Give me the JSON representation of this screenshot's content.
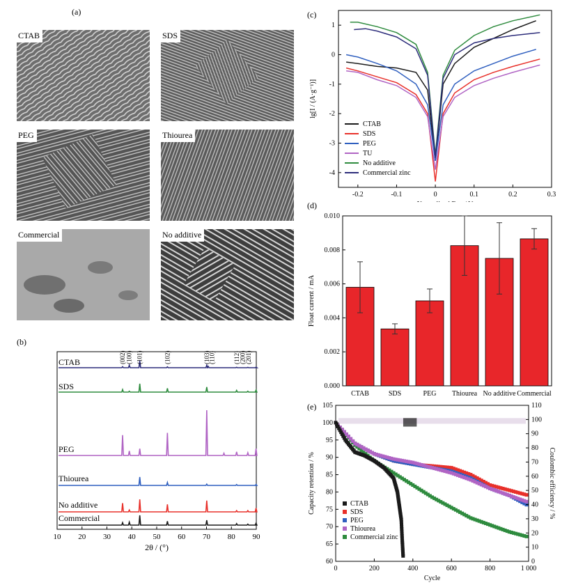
{
  "panel_labels": [
    "(a)",
    "(b)",
    "(c)",
    "(d)",
    "(e)"
  ],
  "sem_images": [
    {
      "label": "CTAB"
    },
    {
      "label": "SDS"
    },
    {
      "label": "PEG"
    },
    {
      "label": "Thiourea"
    },
    {
      "label": "Commercial"
    },
    {
      "label": "No additive"
    }
  ],
  "colors": {
    "ctab": "#1a1a1a",
    "sds": "#e8302a",
    "peg": "#2f5fbf",
    "tu": "#b064c4",
    "no_additive": "#2e8b3e",
    "commercial_zinc": "#2c2c7a",
    "bar": "#e8262a",
    "xrd_ctab": "#2c2c7a"
  },
  "chart_data": [
    {
      "id": "b",
      "type": "line",
      "title": "",
      "xlabel": "2θ / (°)",
      "ylabel": "",
      "xlim": [
        10,
        90
      ],
      "xticks": [
        10,
        20,
        30,
        40,
        50,
        60,
        70,
        80,
        90
      ],
      "series": [
        {
          "name": "CTAB",
          "peaks": [
            [
              36.3,
              0.15
            ],
            [
              39.0,
              0.35
            ],
            [
              43.2,
              1.0
            ],
            [
              54.3,
              0.12
            ],
            [
              70.1,
              0.35
            ],
            [
              70.7,
              0.2
            ],
            [
              82.1,
              0.06
            ],
            [
              86.6,
              0.05
            ],
            [
              89.9,
              0.08
            ]
          ]
        },
        {
          "name": "SDS",
          "peaks": [
            [
              36.3,
              0.3
            ],
            [
              39.0,
              0.1
            ],
            [
              43.2,
              1.0
            ],
            [
              54.3,
              0.45
            ],
            [
              70.1,
              0.6
            ],
            [
              82.1,
              0.2
            ],
            [
              86.6,
              0.1
            ],
            [
              89.9,
              0.25
            ]
          ]
        },
        {
          "name": "PEG",
          "peaks": [
            [
              36.3,
              0.45
            ],
            [
              39.0,
              0.1
            ],
            [
              43.2,
              0.15
            ],
            [
              54.3,
              0.5
            ],
            [
              70.1,
              1.0
            ],
            [
              77.0,
              0.05
            ],
            [
              82.1,
              0.08
            ],
            [
              86.6,
              0.06
            ],
            [
              89.9,
              0.15
            ]
          ]
        },
        {
          "name": "Thiourea",
          "peaks": [
            [
              43.2,
              1.0
            ],
            [
              54.3,
              0.35
            ],
            [
              70.1,
              0.15
            ],
            [
              82.1,
              0.1
            ],
            [
              89.9,
              0.12
            ]
          ]
        },
        {
          "name": "No additive",
          "peaks": [
            [
              36.3,
              0.7
            ],
            [
              39.0,
              0.15
            ],
            [
              43.2,
              1.0
            ],
            [
              54.3,
              0.6
            ],
            [
              70.1,
              0.9
            ],
            [
              82.1,
              0.1
            ],
            [
              86.6,
              0.1
            ],
            [
              89.9,
              0.3
            ]
          ]
        },
        {
          "name": "Commercial",
          "peaks": [
            [
              36.3,
              0.25
            ],
            [
              39.0,
              0.3
            ],
            [
              43.2,
              1.0
            ],
            [
              54.3,
              0.4
            ],
            [
              70.1,
              0.5
            ],
            [
              82.1,
              0.15
            ],
            [
              86.6,
              0.1
            ],
            [
              89.9,
              0.2
            ]
          ]
        }
      ],
      "annotations": [
        {
          "text": "(002)",
          "x": 36.3
        },
        {
          "text": "(100)",
          "x": 39.0
        },
        {
          "text": "(101)",
          "x": 43.2
        },
        {
          "text": "(102)",
          "x": 54.3
        },
        {
          "text": "(103)",
          "x": 70.1
        },
        {
          "text": "(110)",
          "x": 72.2
        },
        {
          "text": "(112)",
          "x": 82.1
        },
        {
          "text": "(200)",
          "x": 84.6
        },
        {
          "text": "(201)",
          "x": 86.9
        }
      ]
    },
    {
      "id": "c",
      "type": "line",
      "title": "",
      "xlabel": "Normalized E_n / V",
      "ylabel": "lg[I / (A·g⁻¹)]",
      "xlim": [
        -0.25,
        0.3
      ],
      "ylim": [
        -4.5,
        1.5
      ],
      "xticks": [
        -0.2,
        -0.1,
        0.0,
        0.1,
        0.2,
        0.3
      ],
      "yticks": [
        -4,
        -3,
        -2,
        -1,
        0,
        1
      ],
      "legend": "lower-left",
      "series": [
        {
          "name": "CTAB",
          "x": [
            -0.23,
            -0.2,
            -0.15,
            -0.1,
            -0.05,
            -0.02,
            0.0,
            0.02,
            0.05,
            0.1,
            0.15,
            0.2,
            0.26
          ],
          "y": [
            -0.25,
            -0.3,
            -0.4,
            -0.45,
            -0.6,
            -1.2,
            -3.6,
            -1.0,
            -0.3,
            0.25,
            0.55,
            0.85,
            1.15
          ]
        },
        {
          "name": "SDS",
          "x": [
            -0.23,
            -0.2,
            -0.15,
            -0.1,
            -0.05,
            -0.02,
            0.0,
            0.02,
            0.05,
            0.1,
            0.15,
            0.2,
            0.27
          ],
          "y": [
            -0.45,
            -0.55,
            -0.75,
            -0.95,
            -1.35,
            -2.0,
            -4.3,
            -2.0,
            -1.3,
            -0.85,
            -0.6,
            -0.4,
            -0.15
          ]
        },
        {
          "name": "PEG",
          "x": [
            -0.23,
            -0.2,
            -0.15,
            -0.1,
            -0.05,
            -0.02,
            0.0,
            0.02,
            0.05,
            0.1,
            0.15,
            0.2,
            0.26
          ],
          "y": [
            0.0,
            -0.08,
            -0.3,
            -0.55,
            -1.0,
            -1.7,
            -3.6,
            -1.7,
            -1.0,
            -0.55,
            -0.3,
            -0.05,
            0.18
          ]
        },
        {
          "name": "TU",
          "x": [
            -0.23,
            -0.2,
            -0.15,
            -0.1,
            -0.05,
            -0.02,
            0.0,
            0.02,
            0.05,
            0.1,
            0.15,
            0.2,
            0.27
          ],
          "y": [
            -0.55,
            -0.6,
            -0.85,
            -1.05,
            -1.45,
            -2.1,
            -3.9,
            -2.1,
            -1.45,
            -1.05,
            -0.8,
            -0.6,
            -0.35
          ]
        },
        {
          "name": "No additive",
          "x": [
            -0.22,
            -0.2,
            -0.15,
            -0.1,
            -0.05,
            -0.02,
            0.0,
            0.02,
            0.05,
            0.1,
            0.15,
            0.2,
            0.27
          ],
          "y": [
            1.1,
            1.1,
            0.95,
            0.75,
            0.35,
            -0.6,
            -3.4,
            -0.7,
            0.15,
            0.65,
            0.95,
            1.15,
            1.35
          ]
        },
        {
          "name": "Commercial zinc",
          "x": [
            -0.21,
            -0.18,
            -0.15,
            -0.1,
            -0.05,
            -0.02,
            0.0,
            0.02,
            0.05,
            0.1,
            0.15,
            0.2,
            0.27
          ],
          "y": [
            0.85,
            0.88,
            0.8,
            0.6,
            0.2,
            -0.7,
            -3.5,
            -0.8,
            0.0,
            0.4,
            0.55,
            0.65,
            0.75
          ]
        }
      ]
    },
    {
      "id": "d",
      "type": "bar",
      "title": "",
      "xlabel": "",
      "ylabel": "Float current / mA",
      "ylim": [
        0,
        0.01
      ],
      "yticks": [
        "0.000",
        "0.002",
        "0.004",
        "0.006",
        "0.008",
        "0.010"
      ],
      "categories": [
        "CTAB",
        "SDS",
        "PEG",
        "Thiourea",
        "No additive",
        "Commercial"
      ],
      "values": [
        0.0058,
        0.00335,
        0.005,
        0.00825,
        0.0075,
        0.00865
      ],
      "errors": [
        0.0015,
        0.0003,
        0.0007,
        0.00175,
        0.0021,
        0.0006
      ]
    },
    {
      "id": "e",
      "type": "scatter",
      "title": "",
      "xlabel": "Cycle",
      "ylabel": "Capacity retention / %",
      "ylabel_right": "Coulombic efficiency / %",
      "xlim": [
        0,
        1000
      ],
      "ylim": [
        60,
        105
      ],
      "ylim_right": [
        0,
        110
      ],
      "xticks": [
        0,
        200,
        400,
        600,
        800,
        "1 000"
      ],
      "yticks": [
        60,
        65,
        70,
        75,
        80,
        85,
        90,
        95,
        100,
        105
      ],
      "yticks_right": [
        0,
        10,
        20,
        30,
        40,
        50,
        60,
        70,
        80,
        90,
        100,
        110
      ],
      "legend": "lower-left",
      "series": [
        {
          "name": "CTAB",
          "x": [
            0,
            50,
            100,
            150,
            200,
            250,
            300,
            320,
            330,
            340,
            345,
            350
          ],
          "y": [
            100,
            95,
            91.5,
            90.5,
            89,
            87,
            84,
            80,
            76,
            72,
            66,
            61
          ]
        },
        {
          "name": "SDS",
          "x": [
            0,
            100,
            200,
            300,
            400,
            500,
            600,
            700,
            800,
            900,
            1000
          ],
          "y": [
            100,
            94,
            91,
            89,
            88,
            87.5,
            87,
            85,
            82,
            80.5,
            79
          ]
        },
        {
          "name": "PEG",
          "x": [
            0,
            100,
            200,
            300,
            400,
            500,
            600,
            700,
            800,
            900,
            1000
          ],
          "y": [
            100,
            94,
            91,
            89,
            88,
            87,
            86,
            84,
            81,
            79,
            76
          ]
        },
        {
          "name": "Thiourea",
          "x": [
            0,
            100,
            200,
            300,
            400,
            500,
            600,
            700,
            800,
            900,
            1000
          ],
          "y": [
            100,
            94,
            91,
            89.5,
            88.5,
            87,
            85.5,
            83.5,
            81,
            79,
            77
          ]
        },
        {
          "name": "Commercial zinc",
          "x": [
            0,
            100,
            200,
            300,
            400,
            500,
            600,
            700,
            800,
            900,
            1000
          ],
          "y": [
            100,
            93.5,
            89,
            85.5,
            82,
            78.5,
            75.5,
            72.5,
            70.5,
            68.5,
            67
          ]
        }
      ]
    }
  ]
}
